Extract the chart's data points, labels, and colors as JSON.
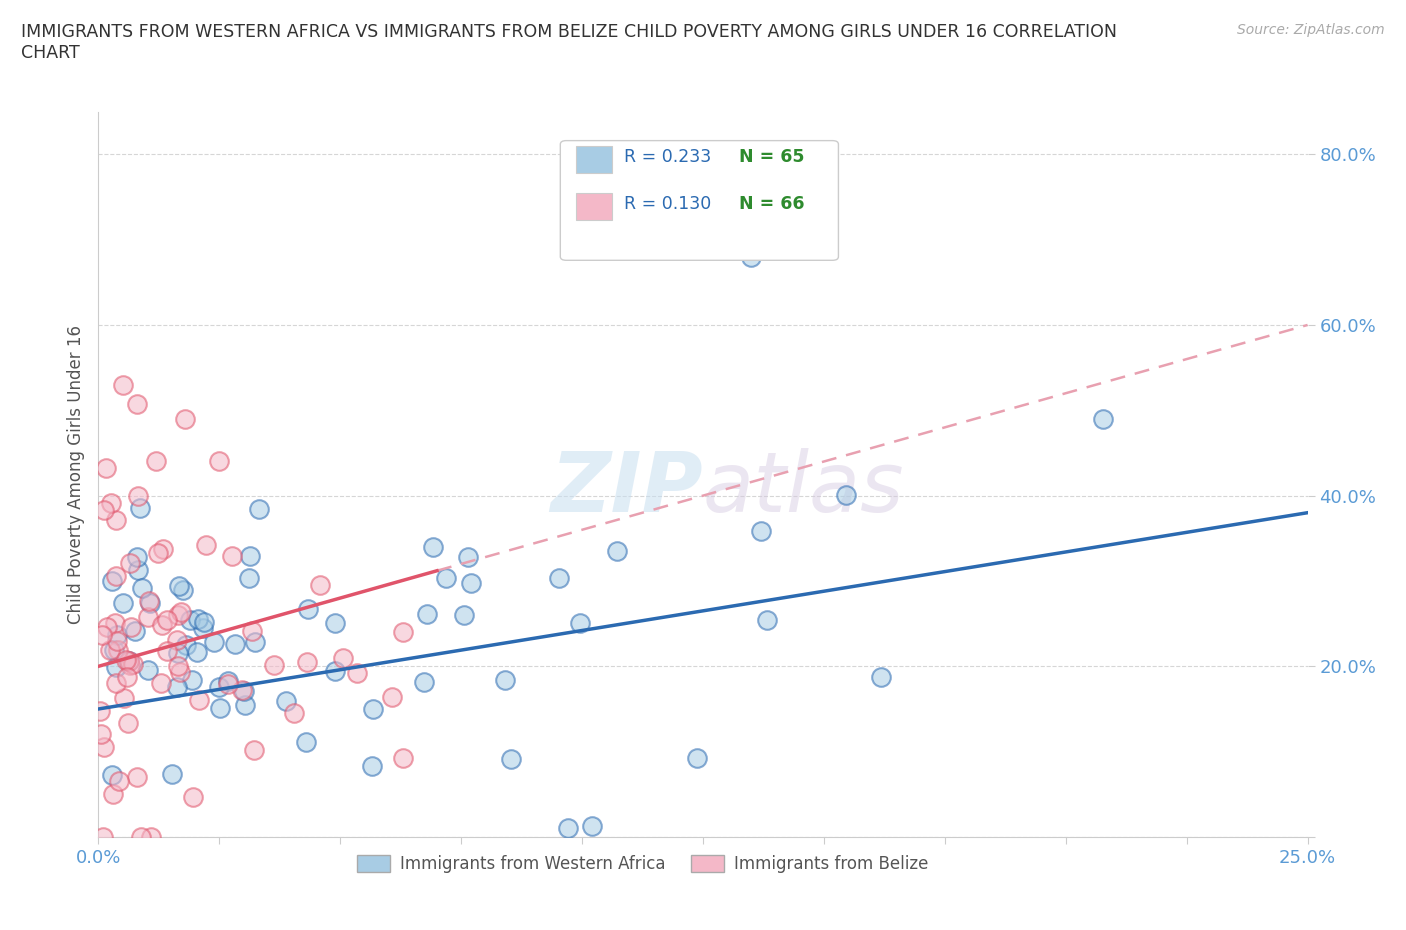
{
  "title": "IMMIGRANTS FROM WESTERN AFRICA VS IMMIGRANTS FROM BELIZE CHILD POVERTY AMONG GIRLS UNDER 16 CORRELATION\nCHART",
  "source": "Source: ZipAtlas.com",
  "ylabel": "Child Poverty Among Girls Under 16",
  "xlim": [
    0.0,
    0.25
  ],
  "ylim": [
    0.0,
    0.85
  ],
  "yticks": [
    0.0,
    0.2,
    0.4,
    0.6,
    0.8
  ],
  "ytick_labels": [
    "",
    "20.0%",
    "40.0%",
    "60.0%",
    "80.0%"
  ],
  "xticks": [
    0.0,
    0.025,
    0.05,
    0.075,
    0.1,
    0.125,
    0.15,
    0.175,
    0.2,
    0.225,
    0.25
  ],
  "xtick_labels": [
    "0.0%",
    "",
    "",
    "",
    "",
    "",
    "",
    "",
    "",
    "",
    "25.0%"
  ],
  "watermark": "ZIPatlas",
  "color_blue": "#a8cce4",
  "color_blue_line": "#2b6ab1",
  "color_pink": "#f4b8c8",
  "color_pink_line": "#e0546a",
  "color_pink_dash": "#e8a0b0",
  "tick_color": "#5b9bd5",
  "legend_items": [
    {
      "color": "#a8cce4",
      "r_text": "R = 0.233",
      "n_text": "N = 65",
      "r_color": "#2b6ab1",
      "n_color": "#2e8b2e"
    },
    {
      "color": "#f4b8c8",
      "r_text": "R = 0.130",
      "n_text": "N = 66",
      "r_color": "#2b6ab1",
      "n_color": "#2e8b2e"
    }
  ],
  "wa_seed": 77,
  "bz_seed": 42
}
